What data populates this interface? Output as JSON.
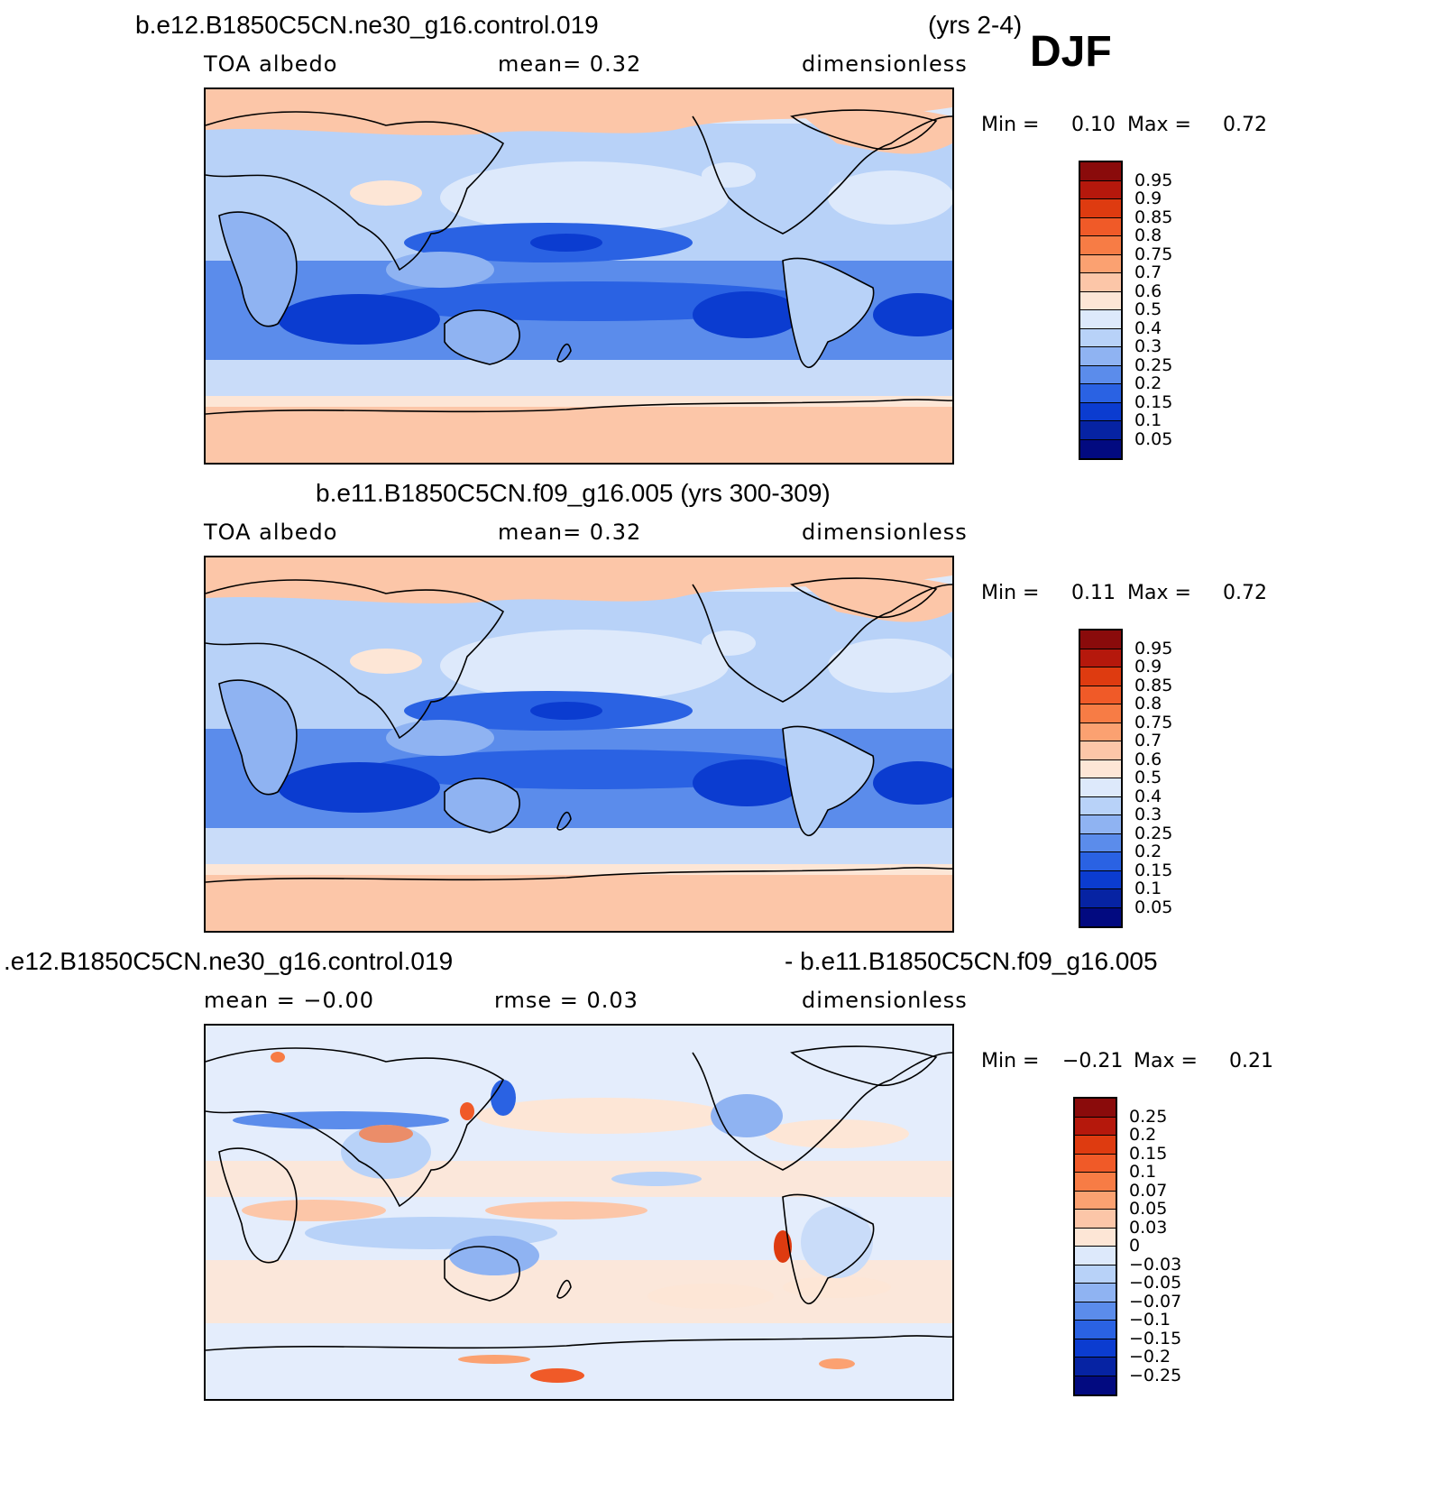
{
  "djf_label": "DJF",
  "panels": [
    {
      "title_left": "b.e12.B1850C5CN.ne30_g16.control.019",
      "title_right": "(yrs 2-4)",
      "sub_left": "TOA  albedo",
      "sub_mid": "mean=    0.32",
      "sub_right": "dimensionless",
      "min_label": "Min  =",
      "min_value": "0.10",
      "max_label": "Max  =",
      "max_value": "0.72",
      "scheme": "abs"
    },
    {
      "title_left": "b.e11.B1850C5CN.f09_g16.005 (yrs 300-309)",
      "title_right": "",
      "sub_left": "TOA  albedo",
      "sub_mid": "mean=    0.32",
      "sub_right": "dimensionless",
      "min_label": "Min  =",
      "min_value": "0.11",
      "max_label": "Max  =",
      "max_value": "0.72",
      "scheme": "abs"
    },
    {
      "title_left": ".e12.B1850C5CN.ne30_g16.control.019",
      "title_right": "- b.e11.B1850C5CN.f09_g16.005",
      "sub_left": "mean  =    −0.00",
      "sub_mid": "rmse  =     0.03",
      "sub_right": "dimensionless",
      "min_label": "Min  =",
      "min_value": "−0.21",
      "max_label": "Max  =",
      "max_value": "0.21",
      "scheme": "diff"
    }
  ],
  "colorbars": {
    "abs": {
      "labels": [
        "0.95",
        "0.9",
        "0.85",
        "0.8",
        "0.75",
        "0.7",
        "0.6",
        "0.5",
        "0.4",
        "0.3",
        "0.25",
        "0.2",
        "0.15",
        "0.1",
        "0.05"
      ],
      "colors": [
        "#8a0b0b",
        "#b5180c",
        "#de3b10",
        "#f05a28",
        "#f77c45",
        "#fba171",
        "#fcc6a8",
        "#fde6d6",
        "#dde9fb",
        "#b8d2f8",
        "#8fb3f2",
        "#5b8ceb",
        "#2a62e3",
        "#0b3cd0",
        "#0623a3",
        "#020a80"
      ]
    },
    "diff": {
      "labels": [
        "0.25",
        "0.2",
        "0.15",
        "0.1",
        "0.07",
        "0.05",
        "0.03",
        "0",
        "−0.03",
        "−0.05",
        "−0.07",
        "−0.1",
        "−0.15",
        "−0.2",
        "−0.25"
      ],
      "colors": [
        "#8a0b0b",
        "#b5180c",
        "#de3b10",
        "#f05a28",
        "#f77c45",
        "#fba171",
        "#fcc6a8",
        "#fde6d6",
        "#dde9fb",
        "#b8d2f8",
        "#8fb3f2",
        "#5b8ceb",
        "#2a62e3",
        "#0b3cd0",
        "#0623a3",
        "#020a80"
      ]
    }
  }
}
